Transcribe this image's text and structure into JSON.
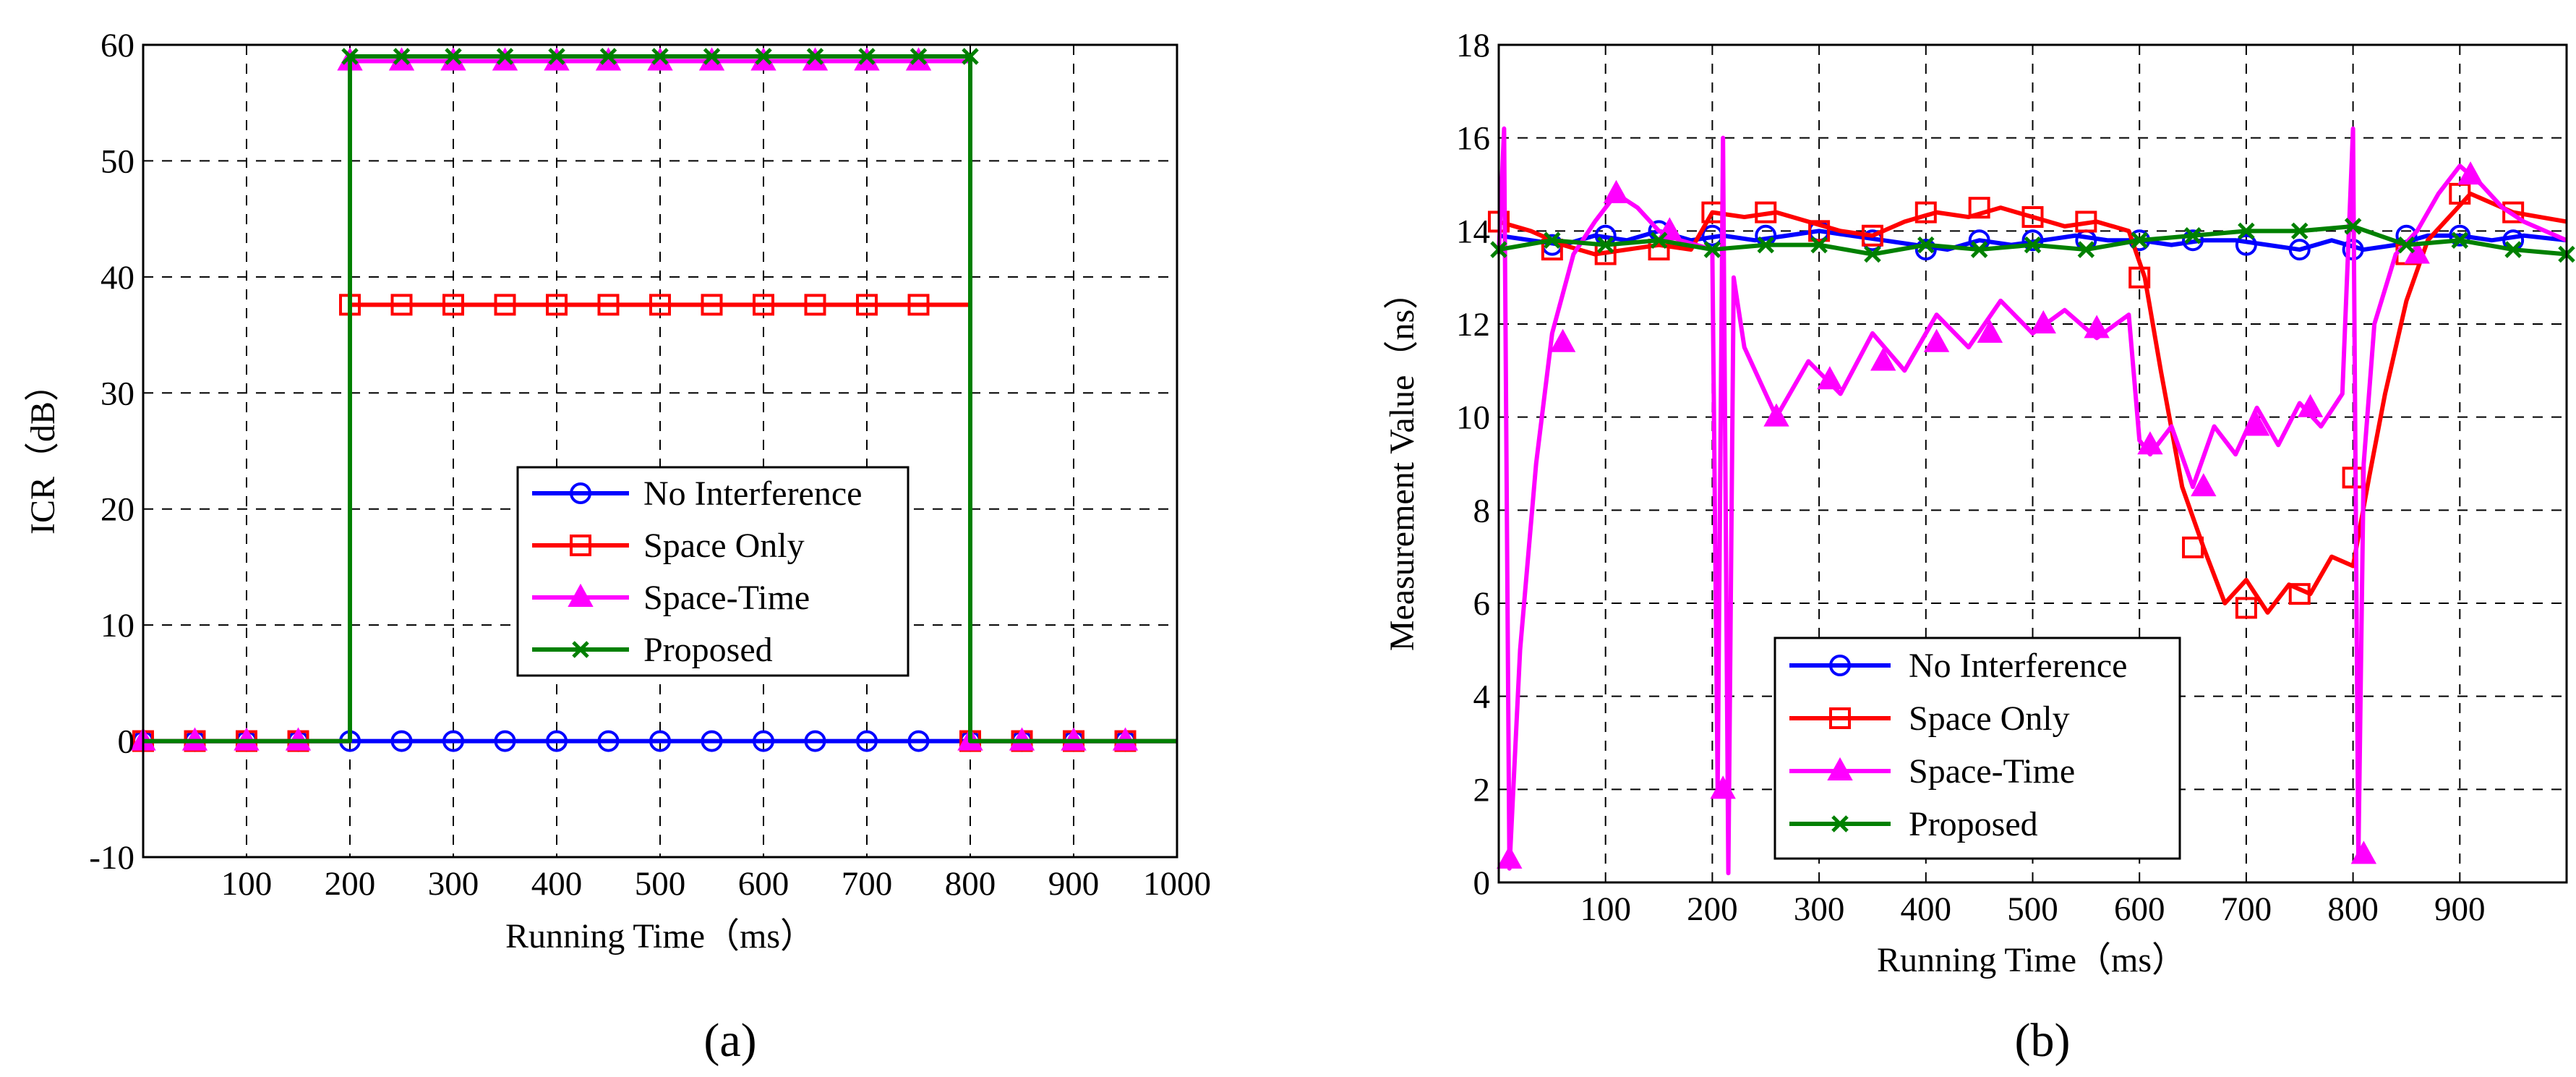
{
  "colors": {
    "no_interference": "#0000ff",
    "space_only": "#ff0000",
    "space_time": "#ff00ff",
    "proposed": "#008000"
  },
  "chart_data": [
    {
      "type": "line",
      "caption": "(a)",
      "xlabel": "Running Time（ms）",
      "ylabel": "ICR（dB）",
      "xlim": [
        0,
        1000
      ],
      "ylim": [
        -10,
        60
      ],
      "xticks": [
        100,
        200,
        300,
        400,
        500,
        600,
        700,
        800,
        900,
        1000
      ],
      "yticks": [
        -10,
        0,
        10,
        20,
        30,
        40,
        50,
        60
      ],
      "grid": true,
      "legend_position": "center-right",
      "series": [
        {
          "name": "No Interference",
          "key": "no_interference",
          "marker": "circle",
          "x": [
            0,
            1000
          ],
          "y": [
            0,
            0
          ],
          "marker_x": [
            0,
            50,
            100,
            150,
            200,
            250,
            300,
            350,
            400,
            450,
            500,
            550,
            600,
            650,
            700,
            750,
            800,
            850,
            900,
            950
          ],
          "marker_y": [
            0,
            0,
            0,
            0,
            0,
            0,
            0,
            0,
            0,
            0,
            0,
            0,
            0,
            0,
            0,
            0,
            0,
            0,
            0,
            0
          ]
        },
        {
          "name": "Space Only",
          "key": "space_only",
          "marker": "square",
          "x": [
            0,
            200,
            200,
            800,
            800,
            1000
          ],
          "y": [
            0,
            0,
            37.6,
            37.6,
            0,
            0
          ],
          "marker_x": [
            0,
            50,
            100,
            150,
            200,
            250,
            300,
            350,
            400,
            450,
            500,
            550,
            600,
            650,
            700,
            750,
            800,
            850,
            900,
            950
          ],
          "marker_y": [
            0,
            0,
            0,
            0,
            37.6,
            37.6,
            37.6,
            37.6,
            37.6,
            37.6,
            37.6,
            37.6,
            37.6,
            37.6,
            37.6,
            37.6,
            0,
            0,
            0,
            0
          ]
        },
        {
          "name": "Space-Time",
          "key": "space_time",
          "marker": "triangle",
          "x": [
            0,
            200,
            200,
            800,
            800,
            1000
          ],
          "y": [
            0,
            0,
            58.6,
            58.6,
            0,
            0
          ],
          "marker_x": [
            0,
            50,
            100,
            150,
            200,
            250,
            300,
            350,
            400,
            450,
            500,
            550,
            600,
            650,
            700,
            750,
            800,
            850,
            900,
            950
          ],
          "marker_y": [
            0,
            0,
            0,
            0,
            58.6,
            58.6,
            58.6,
            58.6,
            58.6,
            58.6,
            58.6,
            58.6,
            58.6,
            58.6,
            58.6,
            58.6,
            0,
            0,
            0,
            0
          ]
        },
        {
          "name": "Proposed",
          "key": "proposed",
          "marker": "x",
          "x": [
            0,
            200,
            200,
            800,
            800,
            1000
          ],
          "y": [
            0,
            0,
            59,
            59,
            0,
            0
          ],
          "marker_x": [
            200,
            250,
            300,
            350,
            400,
            450,
            500,
            550,
            600,
            650,
            700,
            750,
            800
          ],
          "marker_y": [
            59,
            59,
            59,
            59,
            59,
            59,
            59,
            59,
            59,
            59,
            59,
            59,
            59
          ]
        }
      ]
    },
    {
      "type": "line",
      "caption": "(b)",
      "xlabel": "Running Time（ms）",
      "ylabel": "Measurement Value（ns）",
      "xlim": [
        0,
        1000
      ],
      "ylim": [
        0,
        18
      ],
      "xticks": [
        100,
        200,
        300,
        400,
        500,
        600,
        700,
        800,
        900
      ],
      "yticks": [
        0,
        2,
        4,
        6,
        8,
        10,
        12,
        14,
        16,
        18
      ],
      "grid": true,
      "legend_position": "bottom-center",
      "series": [
        {
          "name": "No Interference",
          "key": "no_interference",
          "marker": "circle",
          "x": [
            0,
            30,
            60,
            90,
            120,
            150,
            180,
            210,
            240,
            270,
            300,
            330,
            360,
            390,
            420,
            450,
            480,
            510,
            540,
            570,
            600,
            630,
            660,
            690,
            720,
            750,
            780,
            810,
            840,
            870,
            900,
            930,
            960,
            1000
          ],
          "y": [
            13.9,
            13.8,
            13.7,
            13.9,
            13.8,
            14.0,
            13.8,
            13.9,
            13.8,
            13.9,
            14.0,
            13.9,
            13.8,
            13.7,
            13.6,
            13.8,
            13.7,
            13.8,
            13.9,
            13.8,
            13.8,
            13.7,
            13.8,
            13.8,
            13.7,
            13.6,
            13.8,
            13.6,
            13.7,
            13.9,
            13.9,
            13.8,
            13.9,
            13.8
          ],
          "marker_x": [
            50,
            100,
            150,
            200,
            250,
            300,
            350,
            400,
            450,
            500,
            550,
            600,
            650,
            700,
            750,
            800,
            850,
            900,
            950
          ],
          "marker_y": [
            13.7,
            13.9,
            14.0,
            13.9,
            13.9,
            14.0,
            13.8,
            13.6,
            13.8,
            13.8,
            13.8,
            13.8,
            13.8,
            13.7,
            13.6,
            13.6,
            13.9,
            13.9,
            13.8
          ]
        },
        {
          "name": "Space Only",
          "key": "space_only",
          "marker": "square",
          "x": [
            0,
            30,
            60,
            90,
            120,
            150,
            180,
            200,
            230,
            260,
            290,
            320,
            350,
            380,
            410,
            440,
            470,
            500,
            530,
            560,
            590,
            605,
            620,
            640,
            660,
            680,
            700,
            720,
            740,
            760,
            780,
            800,
            815,
            830,
            850,
            870,
            890,
            910,
            930,
            950,
            975,
            1000
          ],
          "y": [
            14.2,
            14.0,
            13.7,
            13.5,
            13.6,
            13.7,
            13.6,
            14.4,
            14.3,
            14.4,
            14.2,
            14.0,
            13.9,
            14.2,
            14.4,
            14.3,
            14.5,
            14.3,
            14.1,
            14.2,
            14.0,
            13.0,
            11.0,
            8.5,
            7.2,
            6.0,
            6.5,
            5.8,
            6.4,
            6.2,
            7.0,
            6.8,
            8.7,
            10.5,
            12.5,
            13.8,
            14.3,
            14.8,
            14.6,
            14.4,
            14.3,
            14.2
          ],
          "marker_x": [
            0,
            50,
            100,
            150,
            200,
            250,
            300,
            350,
            400,
            450,
            500,
            550,
            600,
            650,
            700,
            750,
            800,
            850,
            900,
            950
          ],
          "marker_y": [
            14.2,
            13.6,
            13.5,
            13.6,
            14.4,
            14.4,
            14.0,
            13.9,
            14.4,
            14.5,
            14.3,
            14.2,
            13.0,
            7.2,
            5.9,
            6.2,
            8.7,
            13.5,
            14.8,
            14.4
          ]
        },
        {
          "name": "Space-Time",
          "key": "space_time",
          "marker": "triangle",
          "x": [
            0,
            5,
            10,
            20,
            35,
            50,
            70,
            90,
            110,
            130,
            150,
            170,
            185,
            200,
            205,
            210,
            215,
            220,
            230,
            260,
            290,
            320,
            350,
            380,
            410,
            440,
            470,
            500,
            530,
            560,
            590,
            600,
            610,
            630,
            650,
            670,
            690,
            710,
            730,
            750,
            770,
            790,
            800,
            805,
            810,
            820,
            840,
            860,
            880,
            900,
            920,
            940,
            960,
            1000
          ],
          "y": [
            13.5,
            16.2,
            0.3,
            5.0,
            9.0,
            11.8,
            13.5,
            14.2,
            14.8,
            14.5,
            14.0,
            13.8,
            13.7,
            13.6,
            2.0,
            16.0,
            0.2,
            13.0,
            11.5,
            10.0,
            11.2,
            10.5,
            11.8,
            11.0,
            12.2,
            11.5,
            12.5,
            11.8,
            12.3,
            11.7,
            12.2,
            9.5,
            9.2,
            9.8,
            8.5,
            9.8,
            9.2,
            10.2,
            9.4,
            10.3,
            9.8,
            10.5,
            16.2,
            0.5,
            9.0,
            12.0,
            13.5,
            14.0,
            14.8,
            15.4,
            15.0,
            14.5,
            14.2,
            13.8
          ],
          "marker_x": [
            10,
            60,
            110,
            160,
            210,
            260,
            310,
            360,
            410,
            460,
            510,
            560,
            610,
            660,
            710,
            760,
            810,
            860,
            910
          ],
          "marker_y": [
            0.5,
            11.6,
            14.8,
            14.0,
            2.0,
            10.0,
            10.8,
            11.2,
            11.6,
            11.8,
            12.0,
            11.9,
            9.4,
            8.5,
            9.8,
            10.2,
            0.6,
            13.5,
            15.2
          ]
        },
        {
          "name": "Proposed",
          "key": "proposed",
          "marker": "x",
          "x": [
            0,
            50,
            100,
            150,
            200,
            250,
            300,
            350,
            400,
            450,
            500,
            550,
            600,
            650,
            700,
            750,
            800,
            850,
            900,
            950,
            1000
          ],
          "y": [
            13.6,
            13.8,
            13.7,
            13.8,
            13.6,
            13.7,
            13.7,
            13.5,
            13.7,
            13.6,
            13.7,
            13.6,
            13.8,
            13.9,
            14.0,
            14.0,
            14.1,
            13.7,
            13.8,
            13.6,
            13.5
          ],
          "marker_x": [
            0,
            50,
            100,
            150,
            200,
            250,
            300,
            350,
            400,
            450,
            500,
            550,
            600,
            650,
            700,
            750,
            800,
            850,
            900,
            950,
            1000
          ],
          "marker_y": [
            13.6,
            13.8,
            13.7,
            13.8,
            13.6,
            13.7,
            13.7,
            13.5,
            13.7,
            13.6,
            13.7,
            13.6,
            13.8,
            13.9,
            14.0,
            14.0,
            14.1,
            13.7,
            13.8,
            13.6,
            13.5
          ]
        }
      ]
    }
  ]
}
